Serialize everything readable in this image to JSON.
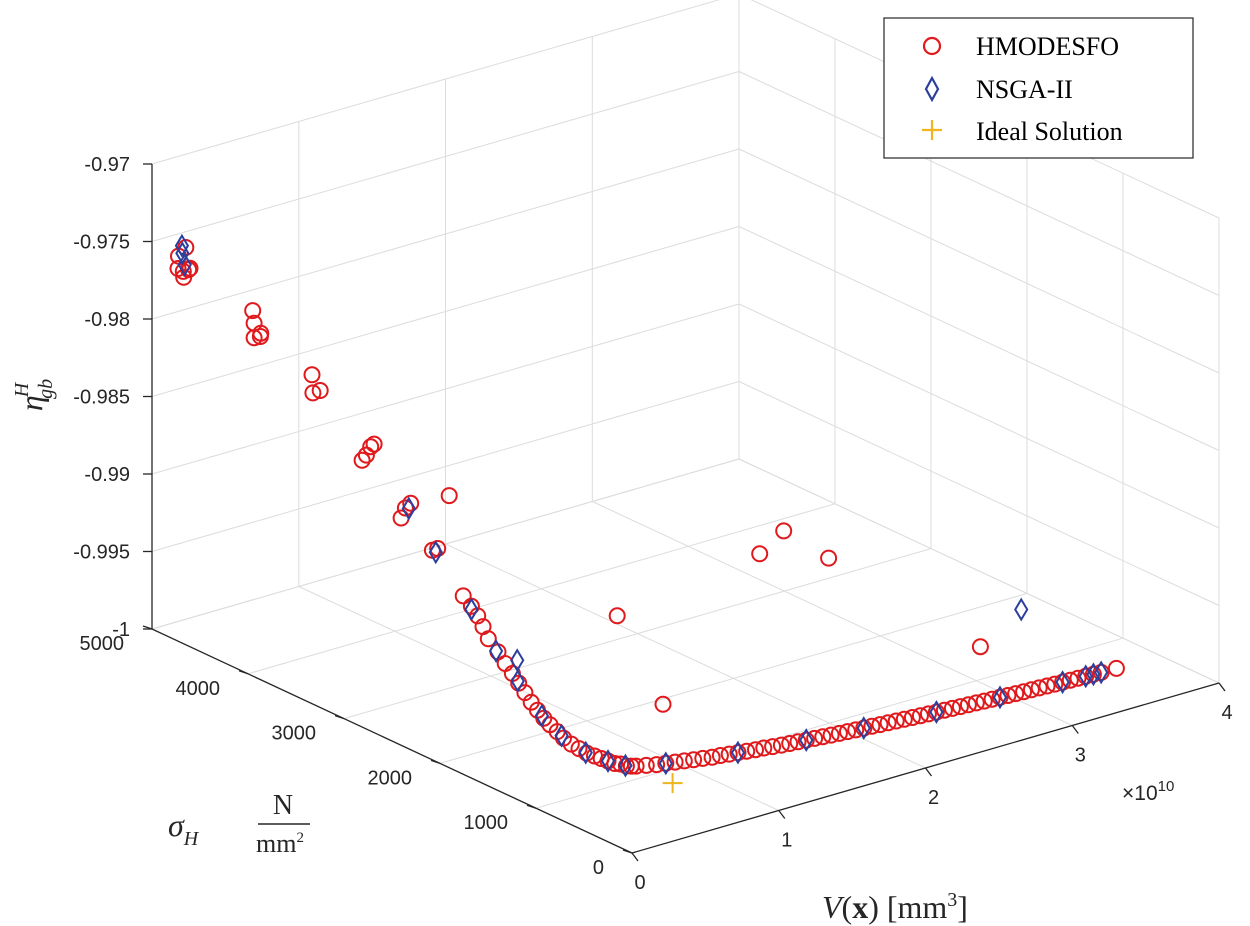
{
  "chart_data": {
    "type": "scatter",
    "projection": "3d",
    "title": "",
    "xlabel": {
      "symbol": "V",
      "arg": "x",
      "unit": "mm",
      "unit_power": "3"
    },
    "ylabel": {
      "symbol": "σ",
      "sub": "H",
      "unit_num": "N",
      "unit_den": "mm",
      "unit_den_power": "2"
    },
    "zlabel": {
      "symbol": "η",
      "sup": "H",
      "sub": "gb"
    },
    "x_exponent": {
      "base": "×10",
      "power": "10"
    },
    "xlim": [
      0,
      4
    ],
    "ylim": [
      0,
      5000
    ],
    "zlim": [
      -1,
      -0.97
    ],
    "x_ticks": [
      "0",
      "1",
      "2",
      "3",
      "4"
    ],
    "y_ticks": [
      "0",
      "1000",
      "2000",
      "3000",
      "4000",
      "5000"
    ],
    "z_ticks": [
      "-1",
      "-0.995",
      "-0.99",
      "-0.985",
      "-0.98",
      "-0.975",
      "-0.97"
    ],
    "grid": true,
    "legend_position": "top-right",
    "colors": {
      "HMODESFO": "#e0191c",
      "NSGA-II": "#2b3f9e",
      "Ideal Solution": "#f0b41c"
    },
    "series": [
      {
        "name": "HMODESFO",
        "marker": "circle",
        "points": [
          [
            0.02,
            4760,
            -0.9761
          ],
          [
            0.03,
            4720,
            -0.9762
          ],
          [
            0.04,
            4680,
            -0.976
          ],
          [
            0.05,
            4800,
            -0.9755
          ],
          [
            0.03,
            4650,
            -0.9758
          ],
          [
            0.06,
            4740,
            -0.9748
          ],
          [
            0.02,
            4700,
            -0.9765
          ],
          [
            0.12,
            4120,
            -0.979
          ],
          [
            0.13,
            4070,
            -0.9788
          ],
          [
            0.14,
            4150,
            -0.9782
          ],
          [
            0.12,
            4050,
            -0.9785
          ],
          [
            0.15,
            4180,
            -0.9775
          ],
          [
            0.22,
            3660,
            -0.9815
          ],
          [
            0.23,
            3600,
            -0.9812
          ],
          [
            0.24,
            3700,
            -0.9805
          ],
          [
            0.29,
            3210,
            -0.9844
          ],
          [
            0.3,
            3180,
            -0.9838
          ],
          [
            0.31,
            3160,
            -0.9836
          ],
          [
            0.28,
            3240,
            -0.9848
          ],
          [
            0.34,
            2880,
            -0.987
          ],
          [
            0.35,
            2840,
            -0.9866
          ],
          [
            0.33,
            2910,
            -0.9877
          ],
          [
            0.38,
            2660,
            -0.9892
          ],
          [
            0.39,
            2620,
            -0.989
          ],
          [
            0.42,
            2400,
            -0.9915
          ],
          [
            0.43,
            2330,
            -0.992
          ],
          [
            0.44,
            2280,
            -0.9925
          ],
          [
            0.45,
            2240,
            -0.9931
          ],
          [
            0.46,
            2200,
            -0.9938
          ],
          [
            0.48,
            2130,
            -0.9945
          ],
          [
            0.49,
            2070,
            -0.9951
          ],
          [
            0.5,
            2010,
            -0.9956
          ],
          [
            0.51,
            1960,
            -0.9961
          ],
          [
            0.52,
            1910,
            -0.9966
          ],
          [
            0.53,
            1860,
            -0.9971
          ],
          [
            0.54,
            1810,
            -0.9975
          ],
          [
            0.55,
            1760,
            -0.9979
          ],
          [
            0.56,
            1710,
            -0.9982
          ],
          [
            0.57,
            1650,
            -0.9985
          ],
          [
            0.58,
            1600,
            -0.9988
          ],
          [
            0.6,
            1550,
            -0.9991
          ],
          [
            0.62,
            1500,
            -0.9993
          ],
          [
            0.64,
            1450,
            -0.9995
          ],
          [
            0.66,
            1400,
            -0.9996
          ],
          [
            0.68,
            1360,
            -0.9997
          ],
          [
            0.7,
            1320,
            -0.9998
          ],
          [
            0.72,
            1280,
            -0.9999
          ],
          [
            0.74,
            1250,
            -0.9999
          ],
          [
            0.76,
            1220,
            -1.0
          ],
          [
            0.78,
            1200,
            -1.0
          ],
          [
            0.8,
            1180,
            -1.0
          ],
          [
            0.85,
            1150,
            -1.0
          ],
          [
            0.9,
            1120,
            -1.0
          ],
          [
            0.95,
            1100,
            -1.0
          ],
          [
            1.0,
            1080,
            -1.0
          ],
          [
            1.05,
            1060,
            -1.0
          ],
          [
            1.1,
            1040,
            -1.0
          ],
          [
            1.15,
            1020,
            -1.0
          ],
          [
            1.2,
            1000,
            -1.0
          ],
          [
            1.25,
            990,
            -1.0
          ],
          [
            1.3,
            975,
            -1.0
          ],
          [
            1.35,
            960,
            -1.0
          ],
          [
            1.4,
            945,
            -1.0
          ],
          [
            1.45,
            930,
            -1.0
          ],
          [
            1.5,
            920,
            -1.0
          ],
          [
            1.55,
            905,
            -1.0
          ],
          [
            1.6,
            890,
            -1.0
          ],
          [
            1.65,
            880,
            -1.0
          ],
          [
            1.7,
            870,
            -1.0
          ],
          [
            1.75,
            860,
            -1.0
          ],
          [
            1.8,
            850,
            -1.0
          ],
          [
            1.85,
            840,
            -1.0
          ],
          [
            1.9,
            830,
            -1.0
          ],
          [
            1.95,
            820,
            -1.0
          ],
          [
            2.0,
            812,
            -1.0
          ],
          [
            2.05,
            804,
            -1.0
          ],
          [
            2.1,
            796,
            -1.0
          ],
          [
            2.15,
            788,
            -1.0
          ],
          [
            2.2,
            780,
            -1.0
          ],
          [
            2.25,
            772,
            -1.0
          ],
          [
            2.3,
            764,
            -1.0
          ],
          [
            2.35,
            756,
            -1.0
          ],
          [
            2.4,
            748,
            -1.0
          ],
          [
            2.45,
            741,
            -1.0
          ],
          [
            2.5,
            734,
            -1.0
          ],
          [
            2.55,
            727,
            -1.0
          ],
          [
            2.6,
            720,
            -1.0
          ],
          [
            2.65,
            713,
            -1.0
          ],
          [
            2.7,
            706,
            -1.0
          ],
          [
            2.75,
            700,
            -1.0
          ],
          [
            2.8,
            694,
            -1.0
          ],
          [
            2.85,
            688,
            -1.0
          ],
          [
            2.9,
            682,
            -1.0
          ],
          [
            2.95,
            676,
            -1.0
          ],
          [
            3.0,
            670,
            -1.0
          ],
          [
            3.05,
            665,
            -1.0
          ],
          [
            3.1,
            660,
            -1.0
          ],
          [
            3.15,
            655,
            -1.0
          ],
          [
            3.2,
            650,
            -1.0
          ],
          [
            3.25,
            645,
            -1.0
          ],
          [
            3.3,
            640,
            -1.0
          ],
          [
            3.35,
            636,
            -1.0
          ],
          [
            3.4,
            632,
            -1.0
          ],
          [
            3.45,
            628,
            -1.0
          ],
          [
            3.5,
            624,
            -1.0
          ],
          [
            3.55,
            620,
            -1.0
          ],
          [
            3.6,
            616,
            -1.0
          ],
          [
            3.7,
            610,
            -1.0
          ],
          [
            3.1,
            1110,
            -0.9984
          ],
          [
            1.6,
            2600,
            -0.9966
          ],
          [
            1.6,
            4350,
            -0.9939
          ],
          [
            2.8,
            2700,
            -0.9947
          ],
          [
            2.8,
            2950,
            -0.9969
          ],
          [
            3.4,
            3150,
            -0.9994
          ],
          [
            0.8,
            900,
            -0.9952
          ]
        ]
      },
      {
        "name": "NSGA-II",
        "marker": "diamond",
        "points": [
          [
            0.04,
            4720,
            -0.9758
          ],
          [
            0.05,
            4760,
            -0.9752
          ],
          [
            0.06,
            4780,
            -0.9748
          ],
          [
            0.35,
            2860,
            -0.987
          ],
          [
            0.39,
            2640,
            -0.9893
          ],
          [
            0.43,
            2330,
            -0.9922
          ],
          [
            0.48,
            2150,
            -0.9945
          ],
          [
            0.51,
            1970,
            -0.996
          ],
          [
            0.55,
            1780,
            -0.9978
          ],
          [
            0.58,
            1620,
            -0.9987
          ],
          [
            0.64,
            1460,
            -0.9995
          ],
          [
            0.7,
            1320,
            -0.9998
          ],
          [
            0.76,
            1230,
            -1.0
          ],
          [
            0.95,
            1100,
            -1.0
          ],
          [
            1.35,
            960,
            -1.0
          ],
          [
            1.75,
            860,
            -1.0
          ],
          [
            2.1,
            796,
            -1.0
          ],
          [
            2.55,
            727,
            -1.0
          ],
          [
            2.95,
            676,
            -1.0
          ],
          [
            3.35,
            636,
            -1.0
          ],
          [
            3.5,
            624,
            -1.0
          ],
          [
            3.55,
            620,
            -1.0
          ],
          [
            3.6,
            616,
            -1.0
          ],
          [
            0.5,
            1960,
            -0.9946
          ],
          [
            3.3,
            990,
            -0.9962
          ]
        ]
      },
      {
        "name": "Ideal Solution",
        "marker": "plus",
        "points": [
          [
            0.8,
            800,
            -1.0
          ]
        ]
      }
    ]
  }
}
